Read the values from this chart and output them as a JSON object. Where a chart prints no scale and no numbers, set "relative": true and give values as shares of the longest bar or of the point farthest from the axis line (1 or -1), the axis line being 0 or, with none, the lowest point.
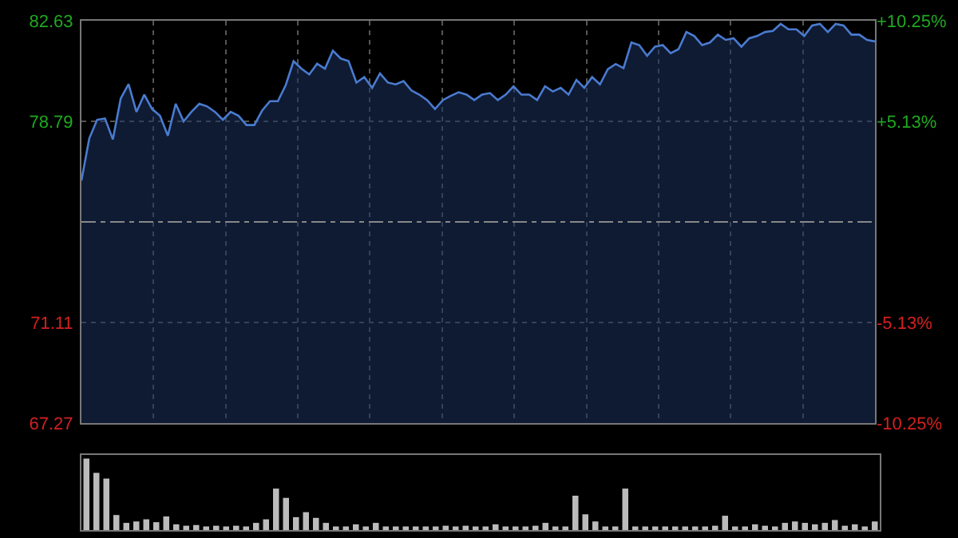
{
  "chart_data": [
    {
      "type": "area",
      "categories": [
        null,
        null,
        null,
        null,
        null,
        null,
        null,
        null,
        null,
        null,
        null,
        null,
        null,
        null,
        null,
        null,
        null,
        null,
        null,
        null,
        null,
        null,
        null,
        null,
        null,
        null,
        null,
        null,
        null,
        null,
        null,
        null,
        null,
        null,
        null,
        null,
        null,
        null,
        null,
        null,
        null,
        null,
        null,
        null,
        null,
        null,
        null,
        null,
        null,
        null,
        null,
        null,
        null,
        null,
        null,
        null,
        null,
        null,
        null,
        null,
        null,
        null,
        null,
        null,
        null,
        null,
        null,
        null,
        null,
        null,
        null,
        null,
        null,
        null,
        null,
        null,
        null,
        null,
        null,
        null,
        null,
        null,
        null,
        null,
        null,
        null,
        null,
        null,
        null,
        null,
        null,
        null,
        null,
        null,
        null,
        null,
        null,
        null,
        null,
        null,
        null,
        null
      ],
      "series": [
        {
          "color": "#4a7bd0",
          "values": [
            76.53,
            78.14,
            78.85,
            78.9,
            78.1,
            79.66,
            80.21,
            79.15,
            79.81,
            79.26,
            79.0,
            78.24,
            79.46,
            78.79,
            79.15,
            79.46,
            79.36,
            79.15,
            78.85,
            79.15,
            79.0,
            78.65,
            78.65,
            79.2,
            79.56,
            79.56,
            80.17,
            81.09,
            80.8,
            80.58,
            80.99,
            80.8,
            81.49,
            81.19,
            81.09,
            80.27,
            80.48,
            80.07,
            80.62,
            80.27,
            80.2,
            80.33,
            79.97,
            79.81,
            79.6,
            79.26,
            79.6,
            79.76,
            79.9,
            79.81,
            79.6,
            79.81,
            79.87,
            79.6,
            79.81,
            80.13,
            79.81,
            79.81,
            79.6,
            80.13,
            79.93,
            80.07,
            79.81,
            80.37,
            80.07,
            80.48,
            80.2,
            80.78,
            80.98,
            80.82,
            81.8,
            81.7,
            81.29,
            81.64,
            81.7,
            81.39,
            81.55,
            82.2,
            82.05,
            81.7,
            81.8,
            82.1,
            81.9,
            81.96,
            81.64,
            81.96,
            82.05,
            82.2,
            82.24,
            82.51,
            82.3,
            82.3,
            82.05,
            82.45,
            82.51,
            82.2,
            82.51,
            82.45,
            82.1,
            82.1,
            81.9,
            81.84
          ]
        }
      ],
      "ylim": [
        67.27,
        82.63
      ],
      "yticks": [
        67.27,
        71.11,
        78.79,
        82.63
      ],
      "y2lim": [
        -10.25,
        10.25
      ],
      "y2ticks": [
        {
          "value": 10.25,
          "label": "+10.25%"
        },
        {
          "value": 5.13,
          "label": "+5.13%"
        },
        {
          "value": -5.13,
          "label": "-5.13%"
        },
        {
          "value": -10.25,
          "label": "-10.25%"
        }
      ],
      "ref_lines": [
        {
          "axis": "y",
          "value": 74.95,
          "color": "#888888",
          "line_style": "dashed"
        }
      ],
      "grid": true,
      "tick_labels": "y"
    },
    {
      "type": "bar",
      "relative": true,
      "color": "#bbbbbb",
      "categories": [
        null,
        null,
        null,
        null,
        null,
        null,
        null,
        null,
        null,
        null,
        null,
        null,
        null,
        null,
        null,
        null,
        null,
        null,
        null,
        null,
        null,
        null,
        null,
        null,
        null,
        null,
        null,
        null,
        null,
        null,
        null,
        null,
        null,
        null,
        null,
        null,
        null,
        null,
        null,
        null,
        null,
        null,
        null,
        null,
        null,
        null,
        null,
        null,
        null,
        null,
        null,
        null,
        null,
        null,
        null,
        null,
        null,
        null,
        null,
        null,
        null,
        null,
        null,
        null,
        null,
        null,
        null,
        null,
        null,
        null,
        null,
        null,
        null,
        null,
        null,
        null,
        null,
        null,
        null,
        null
      ],
      "values": [
        1.0,
        0.8,
        0.72,
        0.21,
        0.1,
        0.12,
        0.15,
        0.11,
        0.19,
        0.08,
        0.06,
        0.07,
        0.05,
        0.06,
        0.05,
        0.06,
        0.05,
        0.1,
        0.15,
        0.58,
        0.45,
        0.18,
        0.25,
        0.17,
        0.1,
        0.05,
        0.05,
        0.08,
        0.05,
        0.1,
        0.05,
        0.05,
        0.05,
        0.05,
        0.05,
        0.05,
        0.06,
        0.05,
        0.06,
        0.05,
        0.05,
        0.08,
        0.05,
        0.05,
        0.05,
        0.06,
        0.1,
        0.05,
        0.05,
        0.48,
        0.22,
        0.12,
        0.05,
        0.05,
        0.58,
        0.05,
        0.05,
        0.05,
        0.05,
        0.05,
        0.05,
        0.05,
        0.05,
        0.06,
        0.2,
        0.05,
        0.05,
        0.08,
        0.06,
        0.05,
        0.1,
        0.12,
        0.1,
        0.08,
        0.1,
        0.14,
        0.06,
        0.08,
        0.05,
        0.12
      ],
      "tick_labels": false
    }
  ]
}
